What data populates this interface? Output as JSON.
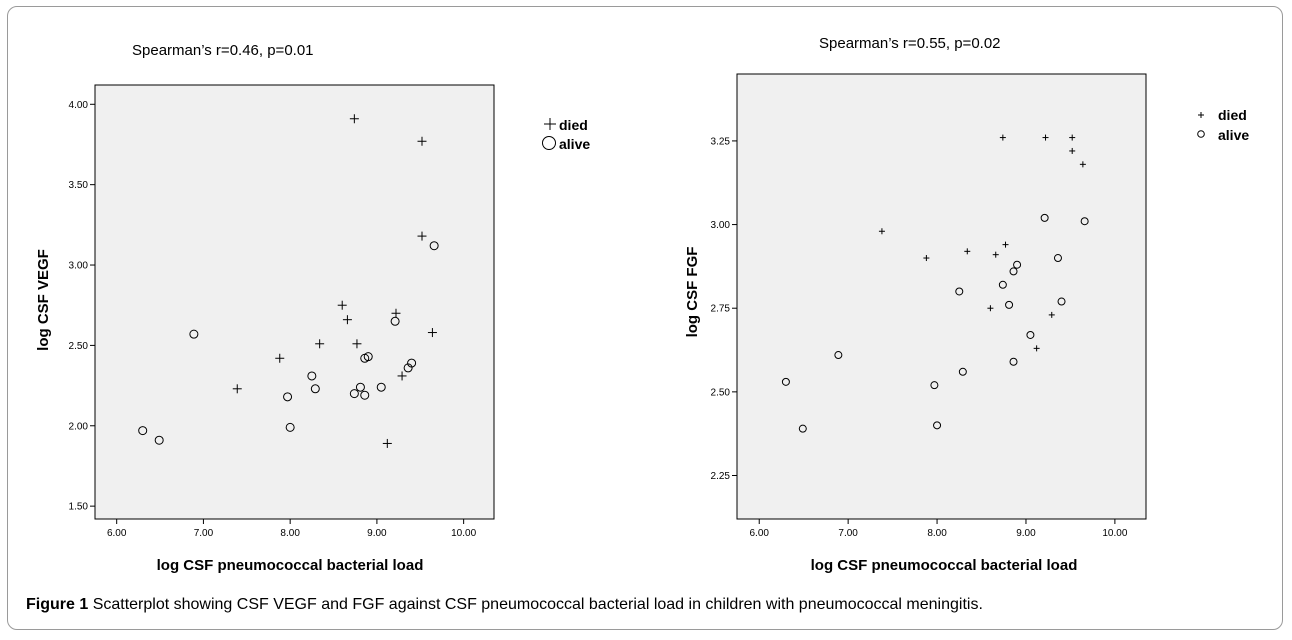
{
  "caption": {
    "label": "Figure 1",
    "text": "Scatterplot showing CSF VEGF and FGF against CSF pneumococcal bacterial load in children with pneumococcal meningitis",
    "end": "."
  },
  "chart_data": [
    {
      "type": "scatter",
      "title": "Spearman’s r=0.46, p=0.01",
      "xlabel": "log CSF pneumococcal bacterial load",
      "ylabel": "log CSF  VEGF",
      "xlim": [
        5.75,
        10.35
      ],
      "ylim": [
        1.42,
        4.12
      ],
      "xticks": [
        6.0,
        7.0,
        8.0,
        9.0,
        10.0
      ],
      "xtick_labels": [
        "6.00",
        "7.00",
        "8.00",
        "9.00",
        "10.00"
      ],
      "yticks": [
        1.5,
        2.0,
        2.5,
        3.0,
        3.5,
        4.0
      ],
      "ytick_labels": [
        "1.50",
        "2.00",
        "2.50",
        "3.00",
        "3.50",
        "4.00"
      ],
      "grid": false,
      "legend_position": "right",
      "series": [
        {
          "name": "died",
          "marker": "plus",
          "points": [
            [
              7.39,
              2.23
            ],
            [
              7.88,
              2.42
            ],
            [
              8.34,
              2.51
            ],
            [
              8.6,
              2.75
            ],
            [
              8.66,
              2.66
            ],
            [
              8.74,
              3.91
            ],
            [
              8.77,
              2.51
            ],
            [
              9.12,
              1.89
            ],
            [
              9.22,
              2.7
            ],
            [
              9.29,
              2.31
            ],
            [
              9.52,
              3.77
            ],
            [
              9.52,
              3.18
            ],
            [
              9.64,
              2.58
            ]
          ]
        },
        {
          "name": "alive",
          "marker": "circle",
          "points": [
            [
              6.3,
              1.97
            ],
            [
              6.49,
              1.91
            ],
            [
              6.89,
              2.57
            ],
            [
              7.97,
              2.18
            ],
            [
              8.0,
              1.99
            ],
            [
              8.25,
              2.31
            ],
            [
              8.29,
              2.23
            ],
            [
              8.74,
              2.2
            ],
            [
              8.81,
              2.24
            ],
            [
              8.86,
              2.42
            ],
            [
              8.86,
              2.19
            ],
            [
              8.9,
              2.43
            ],
            [
              9.05,
              2.24
            ],
            [
              9.21,
              2.65
            ],
            [
              9.36,
              2.36
            ],
            [
              9.4,
              2.39
            ],
            [
              9.66,
              3.12
            ]
          ]
        }
      ]
    },
    {
      "type": "scatter",
      "title": "Spearman’s r=0.55, p=0.02",
      "xlabel": "log CSF pneumococcal bacterial load",
      "ylabel": "log CSF FGF",
      "xlim": [
        5.75,
        10.35
      ],
      "ylim": [
        2.12,
        3.45
      ],
      "xticks": [
        6.0,
        7.0,
        8.0,
        9.0,
        10.0
      ],
      "xtick_labels": [
        "6.00",
        "7.00",
        "8.00",
        "9.00",
        "10.00"
      ],
      "yticks": [
        2.25,
        2.5,
        2.75,
        3.0,
        3.25
      ],
      "ytick_labels": [
        "2.25",
        "2.50",
        "2.75",
        "3.00",
        "3.25"
      ],
      "grid": false,
      "legend_position": "right",
      "series": [
        {
          "name": "died",
          "marker": "plus",
          "points": [
            [
              7.38,
              2.98
            ],
            [
              7.88,
              2.9
            ],
            [
              8.34,
              2.92
            ],
            [
              8.6,
              2.75
            ],
            [
              8.66,
              2.91
            ],
            [
              8.74,
              3.26
            ],
            [
              8.77,
              2.94
            ],
            [
              9.12,
              2.63
            ],
            [
              9.22,
              3.26
            ],
            [
              9.29,
              2.73
            ],
            [
              9.52,
              3.26
            ],
            [
              9.52,
              3.22
            ],
            [
              9.64,
              3.18
            ]
          ]
        },
        {
          "name": "alive",
          "marker": "circle",
          "points": [
            [
              6.3,
              2.53
            ],
            [
              6.49,
              2.39
            ],
            [
              6.89,
              2.61
            ],
            [
              7.97,
              2.52
            ],
            [
              8.0,
              2.4
            ],
            [
              8.25,
              2.8
            ],
            [
              8.29,
              2.56
            ],
            [
              8.74,
              2.82
            ],
            [
              8.81,
              2.76
            ],
            [
              8.86,
              2.86
            ],
            [
              8.86,
              2.59
            ],
            [
              8.9,
              2.88
            ],
            [
              9.05,
              2.67
            ],
            [
              9.21,
              3.02
            ],
            [
              9.36,
              2.9
            ],
            [
              9.4,
              2.77
            ],
            [
              9.66,
              3.01
            ]
          ]
        }
      ]
    }
  ]
}
